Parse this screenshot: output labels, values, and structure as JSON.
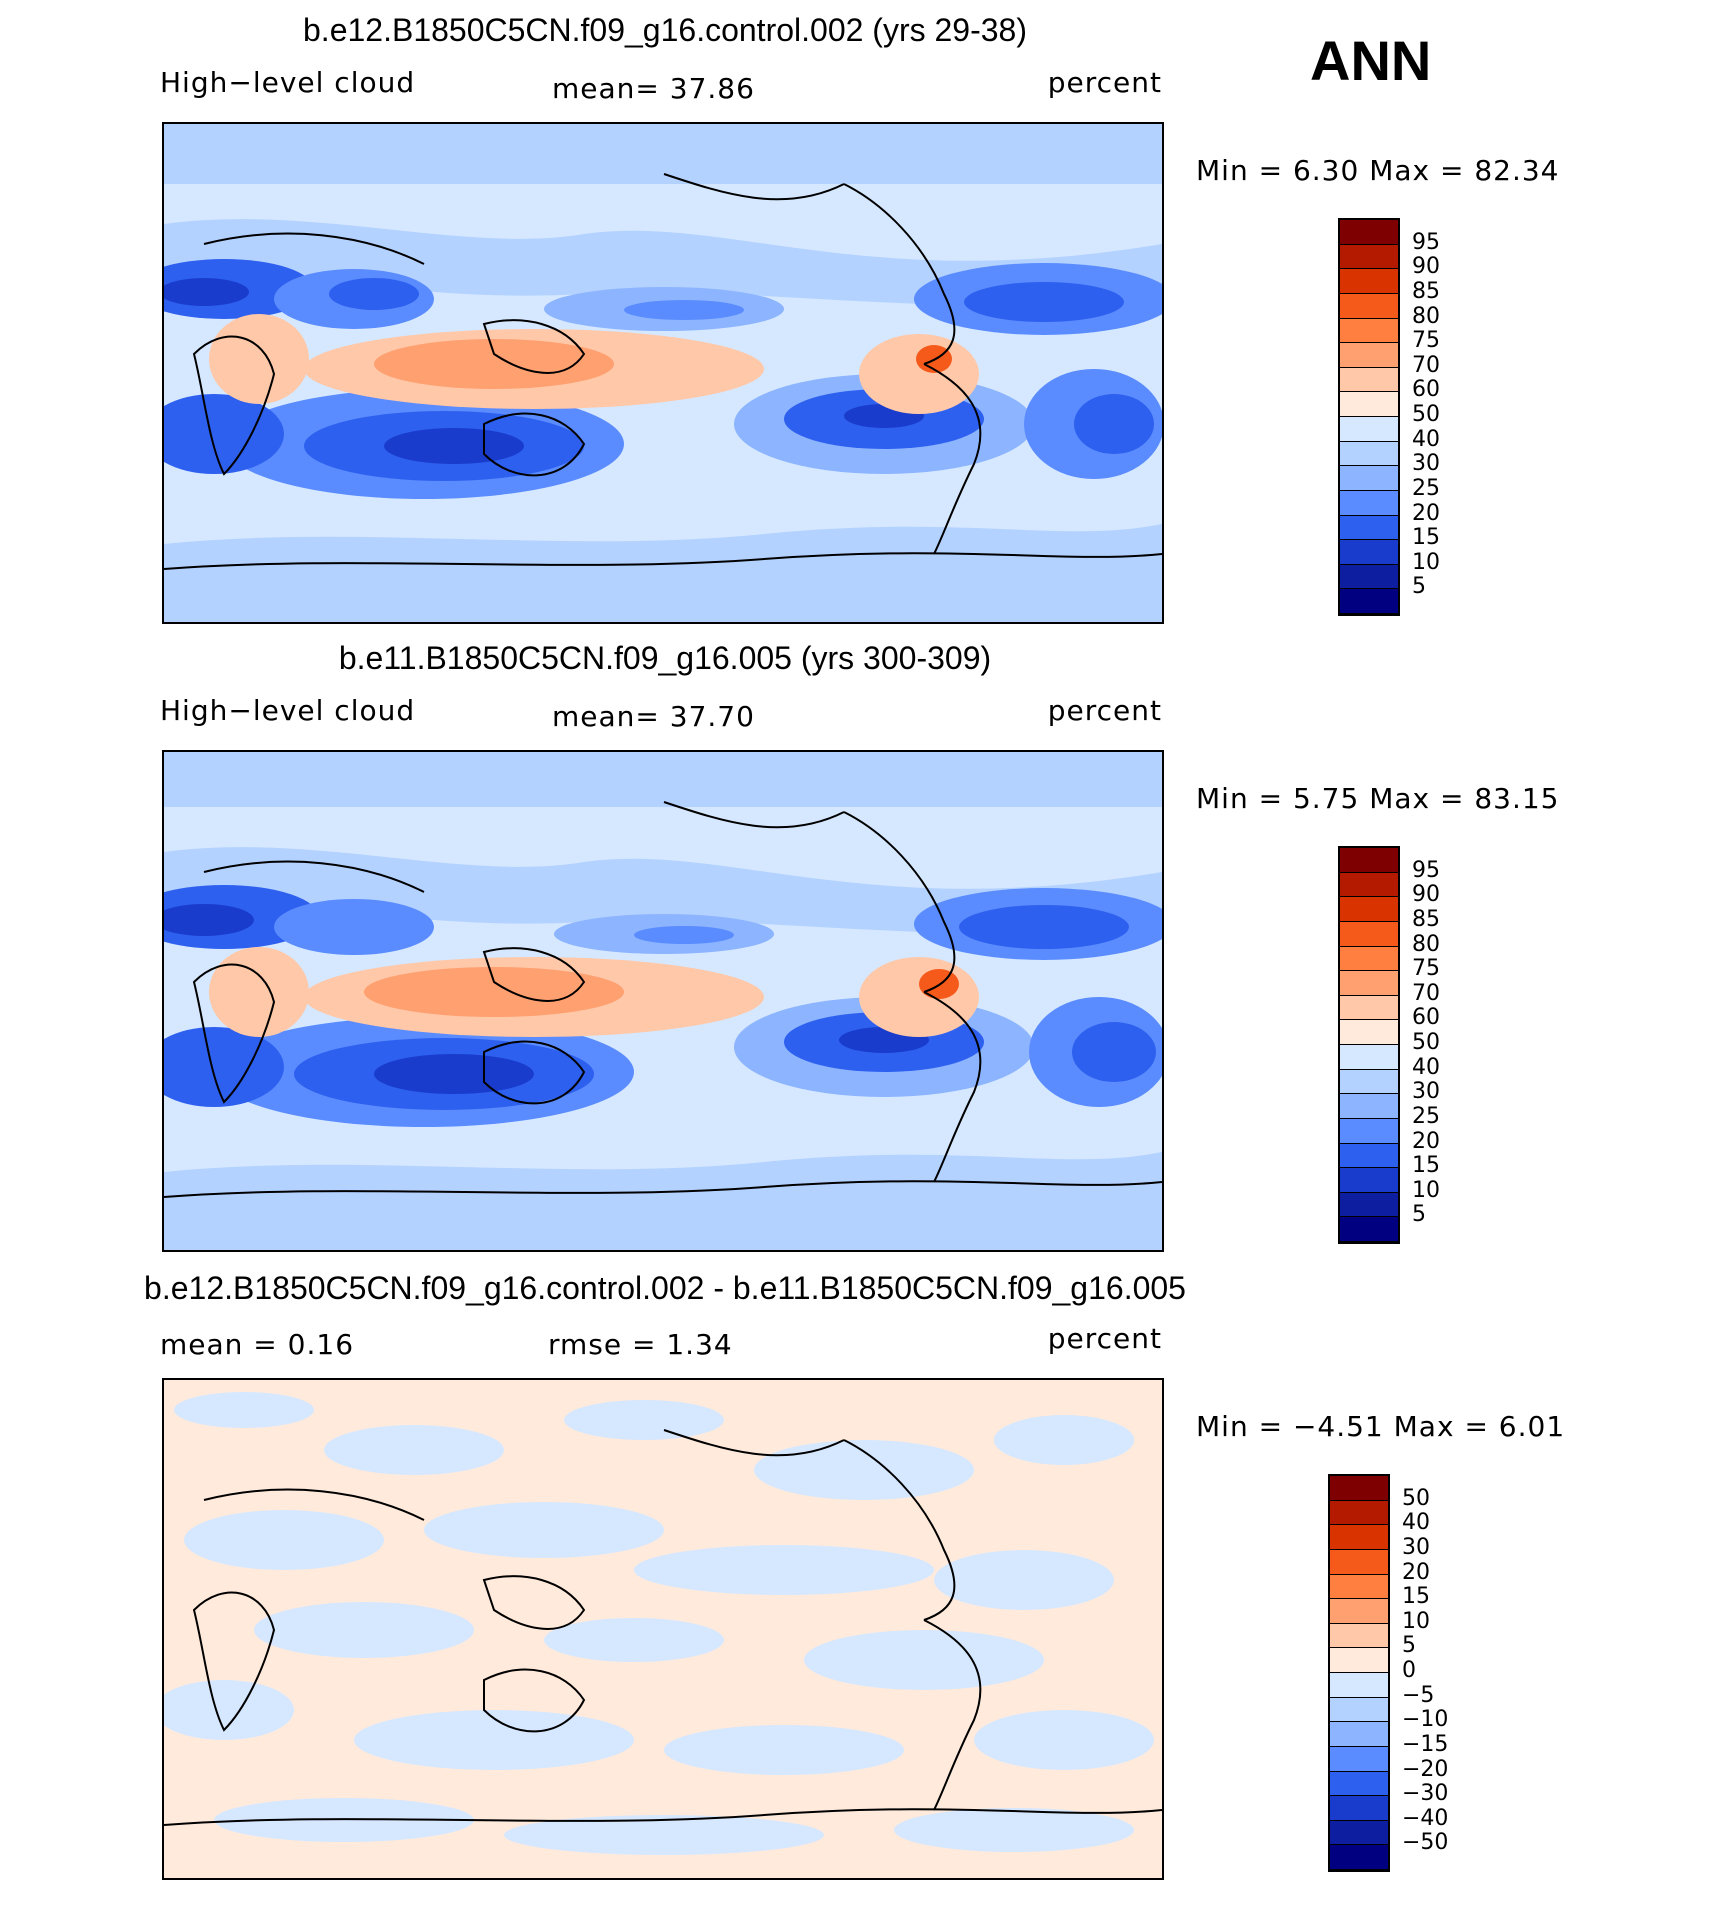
{
  "season": "ANN",
  "panels": [
    {
      "title": "b.e12.B1850C5CN.f09_g16.control.002 (yrs 29-38)",
      "left_label": "High−level cloud",
      "center_label": "mean=   37.86",
      "units": "percent",
      "minmax": "Min =    6.30  Max =   82.34",
      "colorbar_levels": [
        "95",
        "90",
        "85",
        "80",
        "75",
        "70",
        "60",
        "50",
        "40",
        "30",
        "25",
        "20",
        "15",
        "10",
        "5"
      ],
      "colorbar_colors": [
        "#7f0000",
        "#b31a00",
        "#d93300",
        "#f55a1a",
        "#ff7f40",
        "#ffa070",
        "#ffc8a8",
        "#ffeadb",
        "#d6e8ff",
        "#b4d2ff",
        "#8cb4ff",
        "#5a8cff",
        "#2e60f0",
        "#1a3ccc",
        "#0d1fa0",
        "#000080"
      ]
    },
    {
      "title": "b.e11.B1850C5CN.f09_g16.005 (yrs 300-309)",
      "left_label": "High−level cloud",
      "center_label": "mean=   37.70",
      "units": "percent",
      "minmax": "Min =    5.75  Max =   83.15",
      "colorbar_levels": [
        "95",
        "90",
        "85",
        "80",
        "75",
        "70",
        "60",
        "50",
        "40",
        "30",
        "25",
        "20",
        "15",
        "10",
        "5"
      ],
      "colorbar_colors": [
        "#7f0000",
        "#b31a00",
        "#d93300",
        "#f55a1a",
        "#ff7f40",
        "#ffa070",
        "#ffc8a8",
        "#ffeadb",
        "#d6e8ff",
        "#b4d2ff",
        "#8cb4ff",
        "#5a8cff",
        "#2e60f0",
        "#1a3ccc",
        "#0d1fa0",
        "#000080"
      ]
    },
    {
      "title": "b.e12.B1850C5CN.f09_g16.control.002 - b.e11.B1850C5CN.f09_g16.005",
      "left_label": "mean =    0.16",
      "center_label": "rmse =    1.34",
      "units": "percent",
      "minmax": "Min =  −4.51  Max =    6.01",
      "colorbar_levels": [
        "50",
        "40",
        "30",
        "20",
        "15",
        "10",
        "5",
        "0",
        "−5",
        "−10",
        "−15",
        "−20",
        "−30",
        "−40",
        "−50"
      ],
      "colorbar_colors": [
        "#7f0000",
        "#b31a00",
        "#d93300",
        "#f55a1a",
        "#ff7f40",
        "#ffa070",
        "#ffc8a8",
        "#ffeadb",
        "#d6e8ff",
        "#b4d2ff",
        "#8cb4ff",
        "#5a8cff",
        "#2e60f0",
        "#1a3ccc",
        "#0d1fa0",
        "#000080"
      ]
    }
  ]
}
